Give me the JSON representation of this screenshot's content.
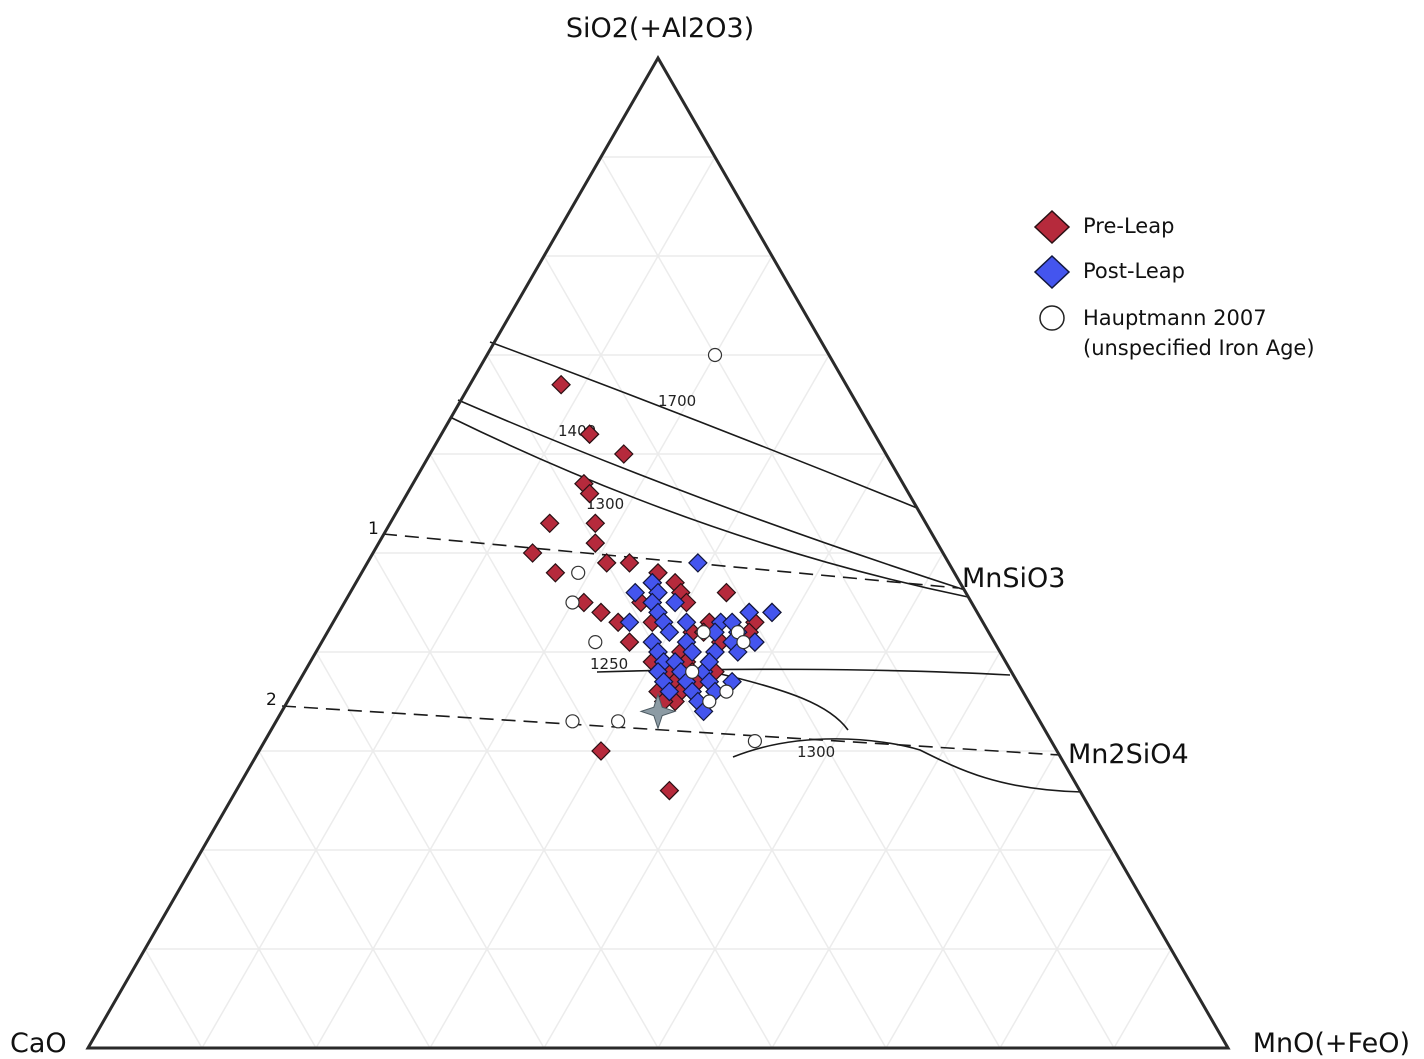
{
  "chart_data": {
    "type": "scatter",
    "subtype": "ternary",
    "vertices": {
      "top": "SiO2(+Al2O3)",
      "left": "CaO",
      "right": "MnO(+FeO)"
    },
    "compound_labels": [
      {
        "id": "mnsio3",
        "label": "MnSiO3",
        "sio2": 0.46,
        "mno": 0.54
      },
      {
        "id": "mn2sio4",
        "label": "Mn2SiO4",
        "sio2": 0.31,
        "mno": 0.69
      }
    ],
    "tie_line_labels": [
      "1",
      "2"
    ],
    "isotherm_labels": [
      "1700",
      "1400",
      "1300",
      "1250",
      "1300"
    ],
    "grid": true,
    "legend": {
      "placement": "top-right",
      "entries": [
        {
          "label": "Pre-Leap",
          "marker": "diamond",
          "color": "#b62a3c"
        },
        {
          "label": "Post-Leap",
          "marker": "diamond",
          "color": "#4455ee"
        },
        {
          "label": "Hauptmann 2007",
          "label2": "(unspecified Iron Age)",
          "marker": "open-circle",
          "color": "#ffffff"
        }
      ]
    },
    "series": [
      {
        "name": "Pre-Leap",
        "points": [
          [
            0.67,
            0.08
          ],
          [
            0.62,
            0.13
          ],
          [
            0.62,
            0.13
          ],
          [
            0.6,
            0.17
          ],
          [
            0.57,
            0.15
          ],
          [
            0.56,
            0.16
          ],
          [
            0.53,
            0.18
          ],
          [
            0.53,
            0.14
          ],
          [
            0.51,
            0.19
          ],
          [
            0.5,
            0.14
          ],
          [
            0.49,
            0.21
          ],
          [
            0.49,
            0.23
          ],
          [
            0.48,
            0.17
          ],
          [
            0.48,
            0.26
          ],
          [
            0.47,
            0.26
          ],
          [
            0.47,
            0.28
          ],
          [
            0.46,
            0.29
          ],
          [
            0.46,
            0.33
          ],
          [
            0.45,
            0.21
          ],
          [
            0.45,
            0.26
          ],
          [
            0.45,
            0.27
          ],
          [
            0.45,
            0.3
          ],
          [
            0.44,
            0.23
          ],
          [
            0.44,
            0.36
          ],
          [
            0.44,
            0.38
          ],
          [
            0.43,
            0.33
          ],
          [
            0.43,
            0.25
          ],
          [
            0.43,
            0.28
          ],
          [
            0.43,
            0.37
          ],
          [
            0.42,
            0.32
          ],
          [
            0.42,
            0.33
          ],
          [
            0.42,
            0.37
          ],
          [
            0.41,
            0.27
          ],
          [
            0.41,
            0.35
          ],
          [
            0.41,
            0.38
          ],
          [
            0.4,
            0.3
          ],
          [
            0.4,
            0.32
          ],
          [
            0.4,
            0.35
          ],
          [
            0.39,
            0.3
          ],
          [
            0.39,
            0.31
          ],
          [
            0.39,
            0.33
          ],
          [
            0.38,
            0.31
          ],
          [
            0.38,
            0.32
          ],
          [
            0.38,
            0.34
          ],
          [
            0.38,
            0.36
          ],
          [
            0.37,
            0.33
          ],
          [
            0.37,
            0.35
          ],
          [
            0.36,
            0.32
          ],
          [
            0.36,
            0.33
          ],
          [
            0.36,
            0.34
          ],
          [
            0.35,
            0.34
          ],
          [
            0.35,
            0.33
          ],
          [
            0.3,
            0.3
          ],
          [
            0.26,
            0.38
          ]
        ]
      },
      {
        "name": "Post-Leap",
        "points": [
          [
            0.49,
            0.29
          ],
          [
            0.47,
            0.26
          ],
          [
            0.46,
            0.27
          ],
          [
            0.46,
            0.25
          ],
          [
            0.45,
            0.27
          ],
          [
            0.45,
            0.29
          ],
          [
            0.44,
            0.36
          ],
          [
            0.44,
            0.38
          ],
          [
            0.44,
            0.28
          ],
          [
            0.43,
            0.31
          ],
          [
            0.43,
            0.34
          ],
          [
            0.43,
            0.26
          ],
          [
            0.43,
            0.29
          ],
          [
            0.42,
            0.34
          ],
          [
            0.42,
            0.36
          ],
          [
            0.41,
            0.29
          ],
          [
            0.41,
            0.32
          ],
          [
            0.41,
            0.36
          ],
          [
            0.41,
            0.38
          ],
          [
            0.4,
            0.3
          ],
          [
            0.4,
            0.33
          ],
          [
            0.4,
            0.35
          ],
          [
            0.39,
            0.31
          ],
          [
            0.39,
            0.32
          ],
          [
            0.38,
            0.31
          ],
          [
            0.38,
            0.33
          ],
          [
            0.38,
            0.35
          ],
          [
            0.37,
            0.32
          ],
          [
            0.37,
            0.34
          ],
          [
            0.37,
            0.36
          ],
          [
            0.36,
            0.33
          ],
          [
            0.36,
            0.35
          ],
          [
            0.36,
            0.37
          ],
          [
            0.35,
            0.36
          ],
          [
            0.34,
            0.37
          ],
          [
            0.43,
            0.35
          ],
          [
            0.42,
            0.3
          ],
          [
            0.4,
            0.37
          ],
          [
            0.39,
            0.35
          ],
          [
            0.37,
            0.38
          ]
        ]
      },
      {
        "name": "Hauptmann 2007",
        "points": [
          [
            0.7,
            0.2
          ],
          [
            0.48,
            0.19
          ],
          [
            0.45,
            0.2
          ],
          [
            0.41,
            0.24
          ],
          [
            0.42,
            0.33
          ],
          [
            0.42,
            0.36
          ],
          [
            0.41,
            0.37
          ],
          [
            0.38,
            0.34
          ],
          [
            0.36,
            0.38
          ],
          [
            0.35,
            0.37
          ],
          [
            0.33,
            0.26
          ],
          [
            0.33,
            0.3
          ],
          [
            0.31,
            0.43
          ]
        ]
      }
    ],
    "star_point": [
      0.34,
      0.33
    ]
  }
}
